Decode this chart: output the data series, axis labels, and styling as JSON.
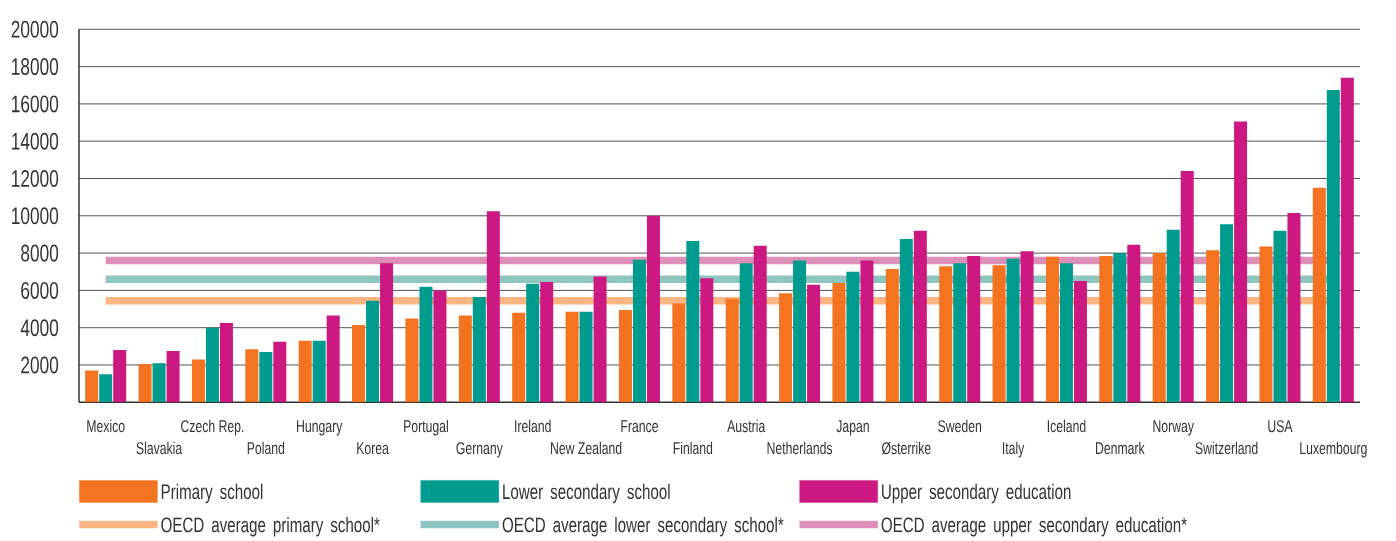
{
  "chart_data": {
    "type": "bar",
    "categories": [
      "Mexico",
      "Slavakia",
      "Czech Rep.",
      "Poland",
      "Hungary",
      "Korea",
      "Portugal",
      "Gernany",
      "Ireland",
      "New Zealand",
      "France",
      "Finland",
      "Austria",
      "Netherlands",
      "Japan",
      "Østerrike",
      "Sweden",
      "Italy",
      "Iceland",
      "Denmark",
      "Norway",
      "Switzerland",
      "USA",
      "Luxembourg"
    ],
    "series": [
      {
        "name": "Primary school",
        "color": "#f37321",
        "values": [
          1700,
          2050,
          2300,
          2850,
          3300,
          4150,
          4500,
          4650,
          4800,
          4850,
          4950,
          5300,
          5550,
          5850,
          6400,
          7150,
          7300,
          7350,
          7800,
          7850,
          8000,
          8150,
          8350,
          11500
        ]
      },
      {
        "name": "Lower secondary school",
        "color": "#009b8f",
        "values": [
          1500,
          2100,
          4000,
          2700,
          3300,
          5450,
          6200,
          5650,
          6350,
          4850,
          7650,
          8650,
          7450,
          7600,
          7000,
          8750,
          7450,
          7700,
          7450,
          8000,
          9250,
          9550,
          9200,
          16750
        ]
      },
      {
        "name": "Upper secondary education",
        "color": "#cc1982",
        "values": [
          2800,
          2750,
          4250,
          3250,
          4650,
          7450,
          6000,
          10250,
          6450,
          6750,
          10000,
          6650,
          8400,
          6300,
          7600,
          9200,
          7850,
          8100,
          6500,
          8450,
          12400,
          15050,
          10150,
          17400
        ]
      }
    ],
    "ref_lines": [
      {
        "axis": "y",
        "value": 5450,
        "label": "OECD average primary school*",
        "color": "#fbb583"
      },
      {
        "axis": "y",
        "value": 6600,
        "label": "OECD average lower secondary school*",
        "color": "#8fc5bf"
      },
      {
        "axis": "y",
        "value": 7600,
        "label": "OECD average upper secondary education*",
        "color": "#de8fb8"
      }
    ],
    "ylim": [
      0,
      20000
    ],
    "yticks": [
      2000,
      4000,
      6000,
      8000,
      10000,
      12000,
      14000,
      16000,
      18000,
      20000
    ],
    "grid": "y",
    "legend": "bottom"
  }
}
